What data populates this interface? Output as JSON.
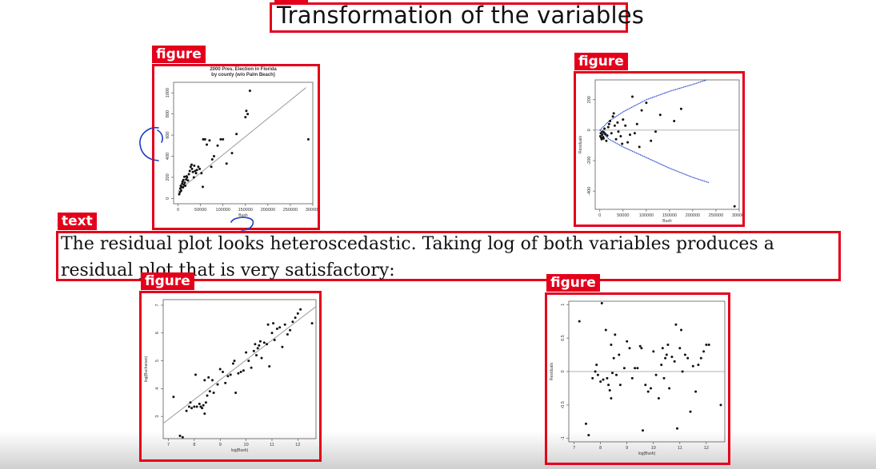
{
  "slide": {
    "title": "Transformation of the variables",
    "paragraph": "The residual plot looks heteroscedastic.  Taking log of both variables produces a residual plot that is very satisfactory:"
  },
  "labels": {
    "figure": "figure",
    "text": "text",
    "title_tag": "title"
  },
  "colors": {
    "annotation_red": "#e4001b",
    "pen_blue": "#1f3fc4",
    "fit_line": "#9a9a9a",
    "points": "#111111"
  },
  "chart_data": [
    {
      "type": "scatter",
      "title": "2000 Pres. Election in Florida",
      "subtitle": "by county (w/o Palm Beach)",
      "xlabel": "Bush",
      "ylabel": "",
      "xlim": [
        -10000,
        300000
      ],
      "ylim": [
        -50,
        1100
      ],
      "xticks": [
        0,
        50000,
        100000,
        150000,
        200000,
        250000,
        300000
      ],
      "yticks": [
        0,
        200,
        400,
        600,
        800,
        1000
      ],
      "fit_line": [
        [
          0,
          70
        ],
        [
          285000,
          1050
        ]
      ],
      "points": [
        [
          2500,
          40
        ],
        [
          4000,
          60
        ],
        [
          5000,
          95
        ],
        [
          6000,
          120
        ],
        [
          7000,
          75
        ],
        [
          8000,
          110
        ],
        [
          9000,
          140
        ],
        [
          10000,
          160
        ],
        [
          11000,
          105
        ],
        [
          12000,
          175
        ],
        [
          13000,
          130
        ],
        [
          14000,
          205
        ],
        [
          15000,
          150
        ],
        [
          16000,
          120
        ],
        [
          18000,
          180
        ],
        [
          19000,
          210
        ],
        [
          20000,
          200
        ],
        [
          22000,
          170
        ],
        [
          24000,
          230
        ],
        [
          26000,
          260
        ],
        [
          28000,
          300
        ],
        [
          30000,
          320
        ],
        [
          31000,
          280
        ],
        [
          33000,
          250
        ],
        [
          35000,
          200
        ],
        [
          36000,
          310
        ],
        [
          38000,
          260
        ],
        [
          40000,
          240
        ],
        [
          42000,
          270
        ],
        [
          45000,
          300
        ],
        [
          48000,
          280
        ],
        [
          52000,
          240
        ],
        [
          55000,
          110
        ],
        [
          56000,
          560
        ],
        [
          60000,
          560
        ],
        [
          64000,
          510
        ],
        [
          70000,
          550
        ],
        [
          74000,
          300
        ],
        [
          76000,
          370
        ],
        [
          80000,
          400
        ],
        [
          88000,
          500
        ],
        [
          95000,
          560
        ],
        [
          100000,
          560
        ],
        [
          108000,
          330
        ],
        [
          120000,
          430
        ],
        [
          130000,
          610
        ],
        [
          150000,
          770
        ],
        [
          152000,
          830
        ],
        [
          155000,
          800
        ],
        [
          160000,
          1020
        ],
        [
          290000,
          560
        ]
      ]
    },
    {
      "type": "scatter",
      "title": "",
      "xlabel": "Bush",
      "ylabel": "Residuals",
      "xlim": [
        -10000,
        300000
      ],
      "ylim": [
        -520,
        330
      ],
      "xticks": [
        0,
        50000,
        100000,
        150000,
        200000,
        250000,
        300000
      ],
      "yticks": [
        -400,
        -200,
        0,
        200
      ],
      "zero_line": 0,
      "points": [
        [
          1000,
          -40
        ],
        [
          2000,
          -20
        ],
        [
          3000,
          -50
        ],
        [
          4000,
          -60
        ],
        [
          5000,
          -30
        ],
        [
          6000,
          -10
        ],
        [
          7000,
          -45
        ],
        [
          8000,
          -55
        ],
        [
          9000,
          -15
        ],
        [
          10000,
          10
        ],
        [
          12000,
          -25
        ],
        [
          14000,
          -70
        ],
        [
          16000,
          -35
        ],
        [
          18000,
          20
        ],
        [
          20000,
          40
        ],
        [
          22000,
          60
        ],
        [
          25000,
          -20
        ],
        [
          28000,
          90
        ],
        [
          30000,
          110
        ],
        [
          32000,
          30
        ],
        [
          35000,
          -60
        ],
        [
          38000,
          50
        ],
        [
          40000,
          -10
        ],
        [
          45000,
          -40
        ],
        [
          48000,
          -90
        ],
        [
          50000,
          70
        ],
        [
          55000,
          30
        ],
        [
          60000,
          -80
        ],
        [
          65000,
          -30
        ],
        [
          70000,
          220
        ],
        [
          75000,
          -20
        ],
        [
          80000,
          40
        ],
        [
          85000,
          -110
        ],
        [
          90000,
          130
        ],
        [
          100000,
          180
        ],
        [
          110000,
          -70
        ],
        [
          120000,
          -10
        ],
        [
          130000,
          100
        ],
        [
          160000,
          60
        ],
        [
          175000,
          140
        ],
        [
          290000,
          -500
        ]
      ],
      "envelope_upper": [
        [
          0,
          0
        ],
        [
          20000,
          60
        ],
        [
          50000,
          120
        ],
        [
          100000,
          200
        ],
        [
          150000,
          255
        ],
        [
          200000,
          300
        ],
        [
          230000,
          330
        ]
      ],
      "envelope_lower": [
        [
          0,
          0
        ],
        [
          20000,
          -60
        ],
        [
          50000,
          -110
        ],
        [
          100000,
          -180
        ],
        [
          150000,
          -250
        ],
        [
          200000,
          -310
        ],
        [
          235000,
          -345
        ]
      ]
    },
    {
      "type": "scatter",
      "title": "",
      "xlabel": "log(Bush)",
      "ylabel": "log(Buchanan)",
      "xlim": [
        6.8,
        12.7
      ],
      "ylim": [
        2.2,
        7.2
      ],
      "xticks": [
        7,
        8,
        9,
        10,
        11,
        12
      ],
      "yticks": [
        3,
        4,
        5,
        6,
        7
      ],
      "fit_line": [
        [
          6.8,
          2.75
        ],
        [
          12.7,
          6.95
        ]
      ],
      "points": [
        [
          7.2,
          3.7
        ],
        [
          7.45,
          2.3
        ],
        [
          7.55,
          2.25
        ],
        [
          7.7,
          3.2
        ],
        [
          7.8,
          3.35
        ],
        [
          7.85,
          3.5
        ],
        [
          7.9,
          3.3
        ],
        [
          8.0,
          3.35
        ],
        [
          8.05,
          4.5
        ],
        [
          8.1,
          3.35
        ],
        [
          8.2,
          3.45
        ],
        [
          8.25,
          3.35
        ],
        [
          8.3,
          3.3
        ],
        [
          8.35,
          3.4
        ],
        [
          8.4,
          4.3
        ],
        [
          8.4,
          3.1
        ],
        [
          8.45,
          3.5
        ],
        [
          8.5,
          3.75
        ],
        [
          8.55,
          4.4
        ],
        [
          8.6,
          3.9
        ],
        [
          8.7,
          4.3
        ],
        [
          8.75,
          3.85
        ],
        [
          8.9,
          4.15
        ],
        [
          9.0,
          4.7
        ],
        [
          9.1,
          4.6
        ],
        [
          9.2,
          4.2
        ],
        [
          9.3,
          4.45
        ],
        [
          9.4,
          4.5
        ],
        [
          9.5,
          4.9
        ],
        [
          9.55,
          5.0
        ],
        [
          9.6,
          3.85
        ],
        [
          9.7,
          4.55
        ],
        [
          9.8,
          4.6
        ],
        [
          9.9,
          4.65
        ],
        [
          10.0,
          5.3
        ],
        [
          10.1,
          5.0
        ],
        [
          10.2,
          4.75
        ],
        [
          10.3,
          5.35
        ],
        [
          10.35,
          5.6
        ],
        [
          10.4,
          5.2
        ],
        [
          10.45,
          5.45
        ],
        [
          10.5,
          5.55
        ],
        [
          10.55,
          5.7
        ],
        [
          10.6,
          5.1
        ],
        [
          10.7,
          5.65
        ],
        [
          10.8,
          5.6
        ],
        [
          10.85,
          6.3
        ],
        [
          10.9,
          4.8
        ],
        [
          11.0,
          6.0
        ],
        [
          11.05,
          6.35
        ],
        [
          11.1,
          5.75
        ],
        [
          11.2,
          6.15
        ],
        [
          11.3,
          6.2
        ],
        [
          11.4,
          5.5
        ],
        [
          11.5,
          6.3
        ],
        [
          11.6,
          5.95
        ],
        [
          11.7,
          6.1
        ],
        [
          11.8,
          6.4
        ],
        [
          11.9,
          6.55
        ],
        [
          12.0,
          6.7
        ],
        [
          12.1,
          6.85
        ],
        [
          12.55,
          6.35
        ]
      ]
    },
    {
      "type": "scatter",
      "title": "",
      "xlabel": "log(Bush)",
      "ylabel": "Residuals",
      "xlim": [
        6.8,
        12.7
      ],
      "ylim": [
        -1.05,
        1.05
      ],
      "xticks": [
        7,
        8,
        9,
        10,
        11,
        12
      ],
      "yticks": [
        -1.0,
        -0.5,
        0.0,
        0.5,
        1.0
      ],
      "zero_line": 0,
      "points": [
        [
          7.2,
          0.75
        ],
        [
          7.45,
          -0.78
        ],
        [
          7.55,
          -0.95
        ],
        [
          7.7,
          -0.1
        ],
        [
          7.8,
          0.0
        ],
        [
          7.85,
          0.1
        ],
        [
          7.9,
          -0.05
        ],
        [
          8.0,
          -0.15
        ],
        [
          8.05,
          1.02
        ],
        [
          8.1,
          -0.12
        ],
        [
          8.2,
          0.62
        ],
        [
          8.25,
          -0.1
        ],
        [
          8.3,
          -0.2
        ],
        [
          8.35,
          -0.28
        ],
        [
          8.4,
          0.4
        ],
        [
          8.4,
          -0.4
        ],
        [
          8.45,
          -0.02
        ],
        [
          8.5,
          0.2
        ],
        [
          8.55,
          0.55
        ],
        [
          8.6,
          -0.05
        ],
        [
          8.7,
          0.25
        ],
        [
          8.75,
          -0.2
        ],
        [
          8.9,
          0.05
        ],
        [
          9.0,
          0.45
        ],
        [
          9.1,
          0.35
        ],
        [
          9.2,
          -0.1
        ],
        [
          9.3,
          0.05
        ],
        [
          9.4,
          0.05
        ],
        [
          9.5,
          0.38
        ],
        [
          9.55,
          0.35
        ],
        [
          9.6,
          -0.88
        ],
        [
          9.7,
          -0.2
        ],
        [
          9.8,
          -0.3
        ],
        [
          9.9,
          -0.25
        ],
        [
          10.0,
          0.3
        ],
        [
          10.1,
          -0.05
        ],
        [
          10.2,
          -0.4
        ],
        [
          10.3,
          0.1
        ],
        [
          10.35,
          0.35
        ],
        [
          10.4,
          -0.1
        ],
        [
          10.45,
          0.2
        ],
        [
          10.5,
          0.25
        ],
        [
          10.55,
          0.4
        ],
        [
          10.6,
          -0.25
        ],
        [
          10.7,
          0.22
        ],
        [
          10.8,
          0.15
        ],
        [
          10.85,
          0.7
        ],
        [
          10.9,
          -0.85
        ],
        [
          11.0,
          0.35
        ],
        [
          11.05,
          0.62
        ],
        [
          11.1,
          0.0
        ],
        [
          11.2,
          0.25
        ],
        [
          11.3,
          0.2
        ],
        [
          11.4,
          -0.6
        ],
        [
          11.5,
          0.08
        ],
        [
          11.6,
          -0.3
        ],
        [
          11.7,
          0.1
        ],
        [
          11.8,
          0.2
        ],
        [
          11.9,
          0.3
        ],
        [
          12.0,
          0.4
        ],
        [
          12.1,
          0.4
        ],
        [
          12.55,
          -0.5
        ]
      ]
    }
  ]
}
